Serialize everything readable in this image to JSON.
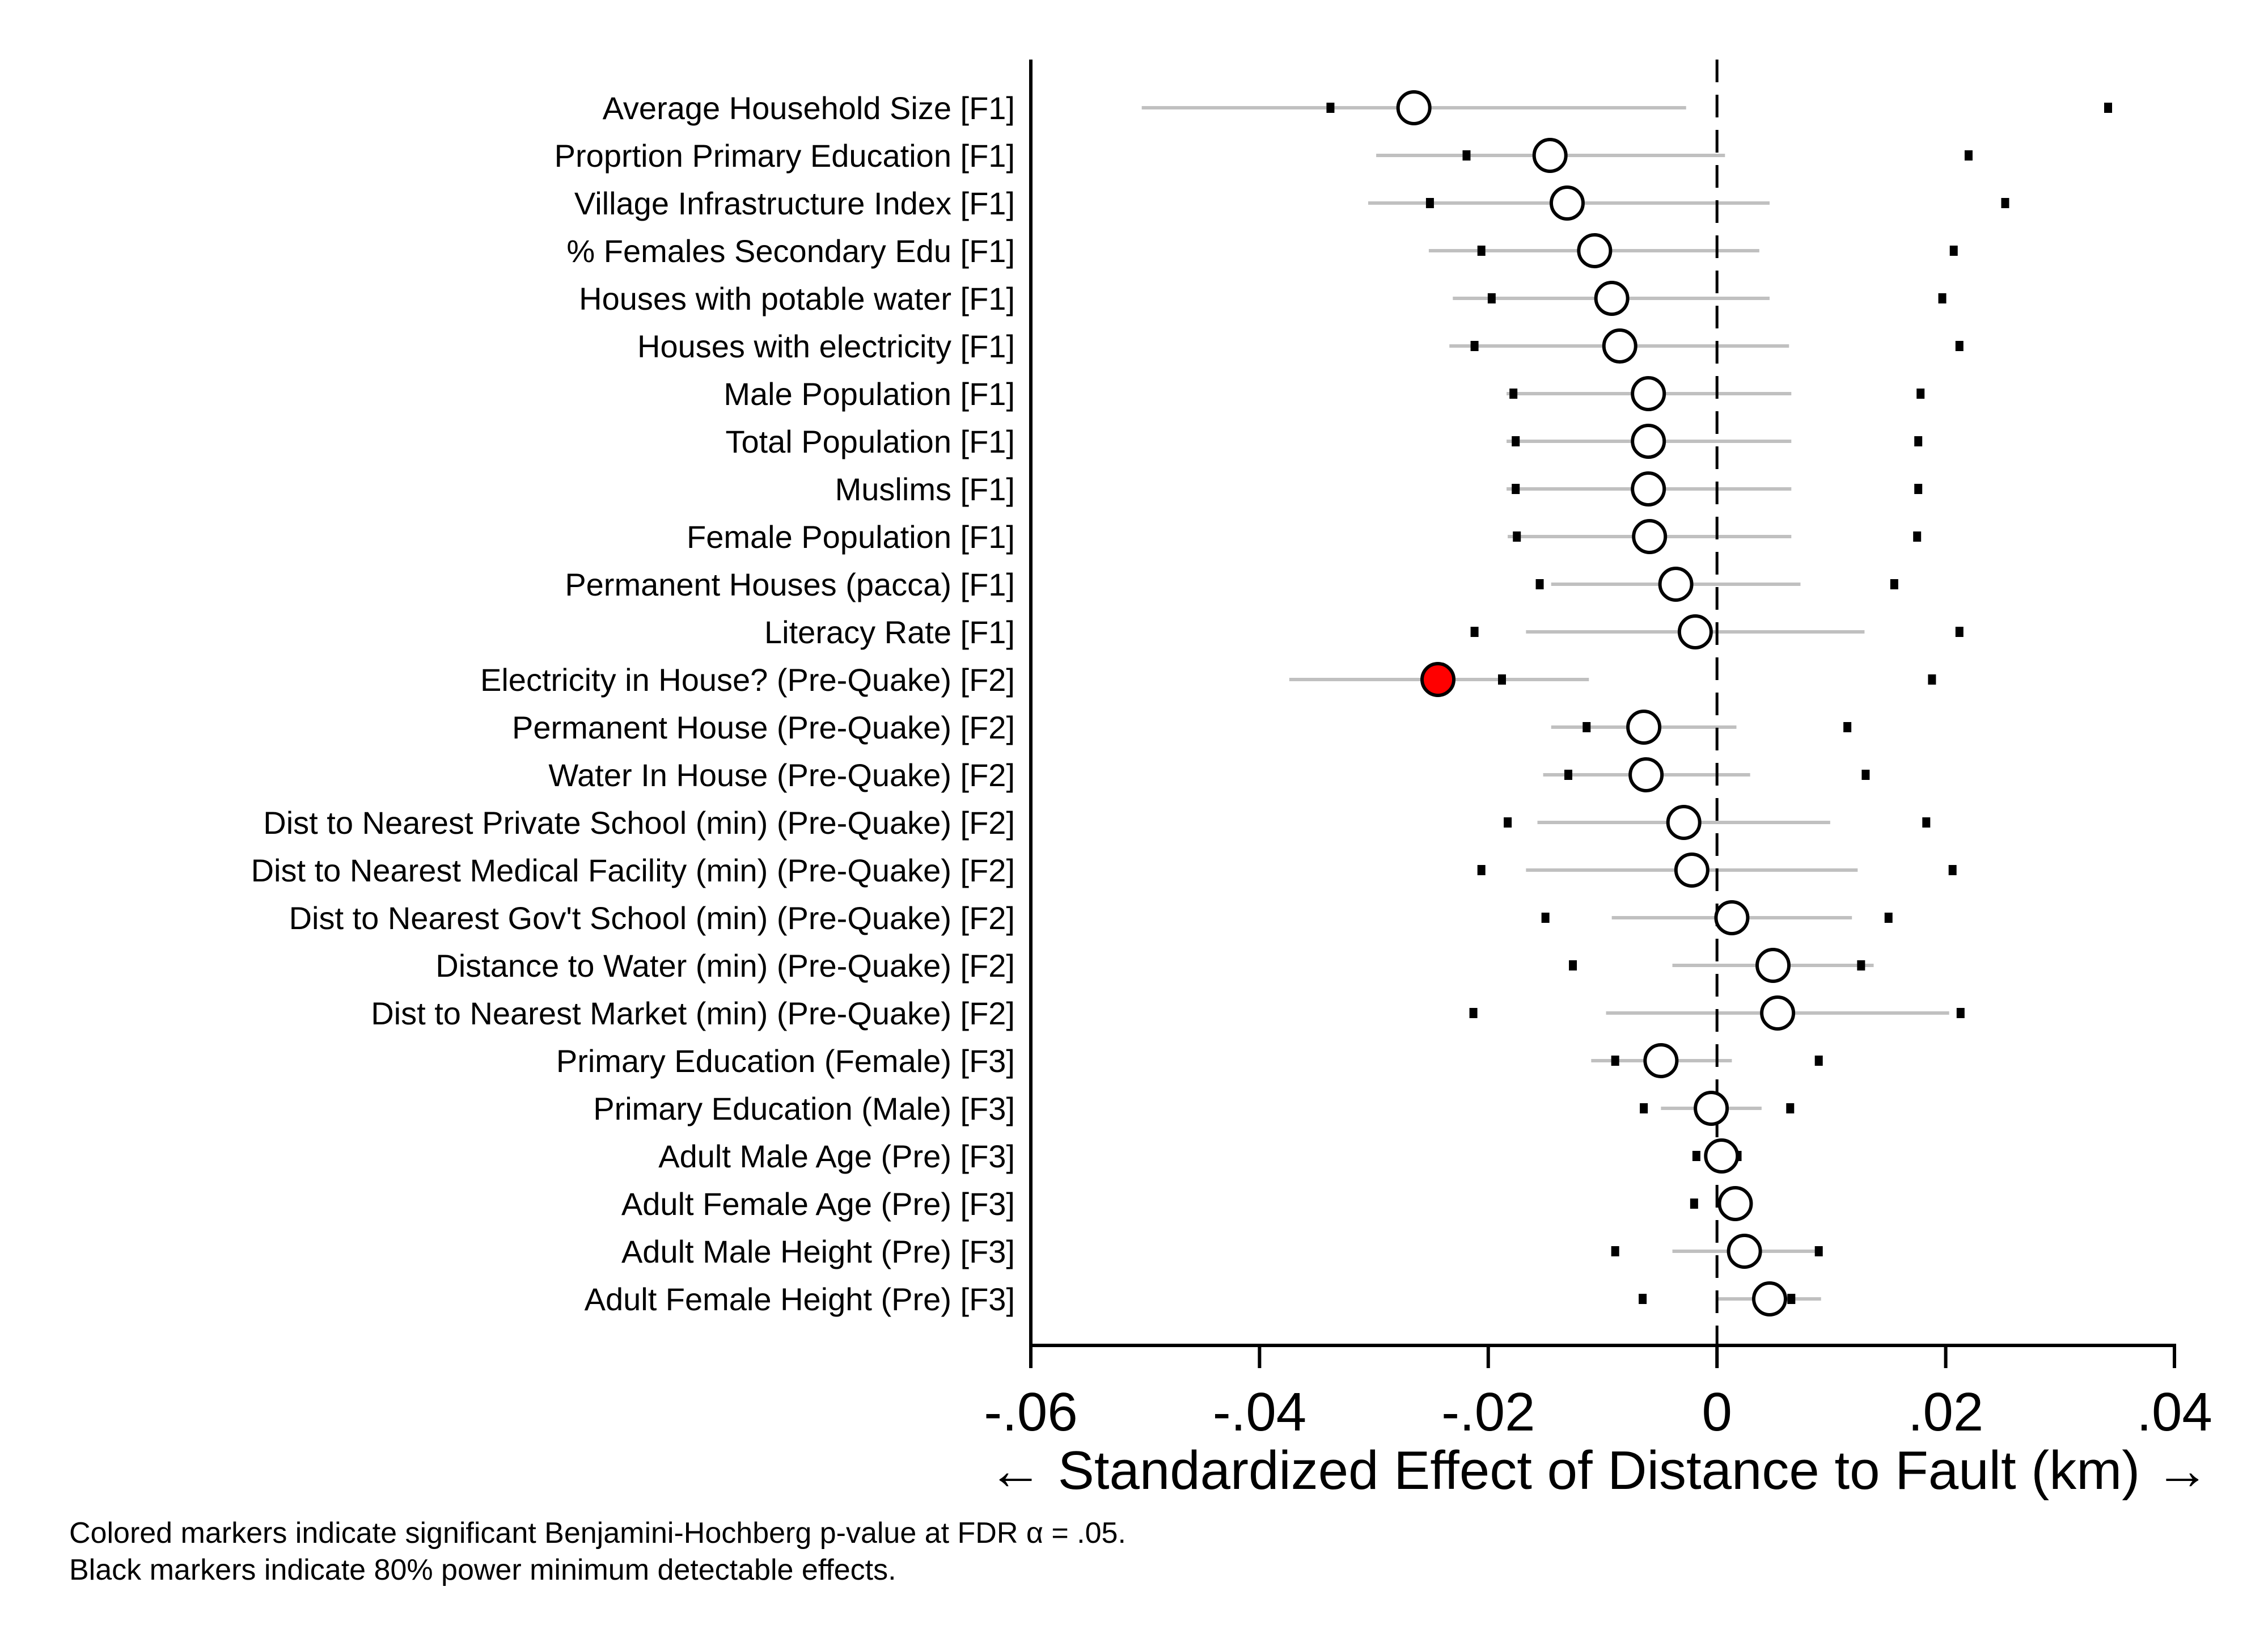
{
  "chart_data": {
    "type": "scatter",
    "subtype": "coefficient-plot",
    "xlabel": "← Standardized Effect of Distance to Fault (km) →",
    "xlim": [
      -0.06,
      0.04
    ],
    "x_ticks": [
      -0.06,
      -0.04,
      -0.02,
      0,
      0.02,
      0.04
    ],
    "x_tick_labels": [
      "-.06",
      "-.04",
      "-.02",
      "0",
      ".02",
      ".04"
    ],
    "reference_line": 0,
    "grid": false,
    "colors": {
      "ci": "#c0c0c0",
      "marker_fill": "#ffffff",
      "marker_significant": "#ff0000",
      "mde": "#000000"
    },
    "rows": [
      {
        "label": "Average Household Size [F1]",
        "estimate": -0.0265,
        "ci": [
          -0.0503,
          -0.0027
        ],
        "mde": [
          -0.0338,
          0.0342
        ],
        "significant": false
      },
      {
        "label": "Proprtion Primary Education [F1]",
        "estimate": -0.0146,
        "ci": [
          -0.0298,
          0.0007
        ],
        "mde": [
          -0.0219,
          0.022
        ],
        "significant": false
      },
      {
        "label": "Village Infrastructure Index [F1]",
        "estimate": -0.0131,
        "ci": [
          -0.0305,
          0.0046
        ],
        "mde": [
          -0.0251,
          0.0252
        ],
        "significant": false
      },
      {
        "label": "% Females Secondary Edu [F1]",
        "estimate": -0.0107,
        "ci": [
          -0.0252,
          0.0037
        ],
        "mde": [
          -0.0206,
          0.0207
        ],
        "significant": false
      },
      {
        "label": "Houses with potable water [F1]",
        "estimate": -0.0092,
        "ci": [
          -0.0231,
          0.0046
        ],
        "mde": [
          -0.0197,
          0.0197
        ],
        "significant": false
      },
      {
        "label": "Houses with electricity [F1]",
        "estimate": -0.0085,
        "ci": [
          -0.0234,
          0.0063
        ],
        "mde": [
          -0.0212,
          0.0212
        ],
        "significant": false
      },
      {
        "label": "Male Population [F1]",
        "estimate": -0.006,
        "ci": [
          -0.0184,
          0.0065
        ],
        "mde": [
          -0.0178,
          0.0178
        ],
        "significant": false
      },
      {
        "label": "Total Population [F1]",
        "estimate": -0.006,
        "ci": [
          -0.0184,
          0.0065
        ],
        "mde": [
          -0.0176,
          0.0176
        ],
        "significant": false
      },
      {
        "label": "Muslims [F1]",
        "estimate": -0.006,
        "ci": [
          -0.0184,
          0.0065
        ],
        "mde": [
          -0.0176,
          0.0176
        ],
        "significant": false
      },
      {
        "label": "Female Population [F1]",
        "estimate": -0.0059,
        "ci": [
          -0.0183,
          0.0065
        ],
        "mde": [
          -0.0175,
          0.0175
        ],
        "significant": false
      },
      {
        "label": "Permanent Houses (pacca) [F1]",
        "estimate": -0.0036,
        "ci": [
          -0.0145,
          0.0073
        ],
        "mde": [
          -0.0155,
          0.0155
        ],
        "significant": false
      },
      {
        "label": "Literacy Rate [F1]",
        "estimate": -0.0019,
        "ci": [
          -0.0167,
          0.0129
        ],
        "mde": [
          -0.0212,
          0.0212
        ],
        "significant": false
      },
      {
        "label": "Electricity in House? (Pre-Quake) [F2]",
        "estimate": -0.0244,
        "ci": [
          -0.0374,
          -0.0112
        ],
        "mde": [
          -0.0188,
          0.0188
        ],
        "significant": true
      },
      {
        "label": "Permanent House (Pre-Quake) [F2]",
        "estimate": -0.0064,
        "ci": [
          -0.0145,
          0.0017
        ],
        "mde": [
          -0.0114,
          0.0114
        ],
        "significant": false
      },
      {
        "label": "Water In House (Pre-Quake) [F2]",
        "estimate": -0.0062,
        "ci": [
          -0.0152,
          0.0029
        ],
        "mde": [
          -0.013,
          0.013
        ],
        "significant": false
      },
      {
        "label": "Dist to Nearest Private School (min) (Pre-Quake) [F2]",
        "estimate": -0.0029,
        "ci": [
          -0.0157,
          0.0099
        ],
        "mde": [
          -0.0183,
          0.0183
        ],
        "significant": false
      },
      {
        "label": "Dist to Nearest Medical Facility (min) (Pre-Quake) [F2]",
        "estimate": -0.0022,
        "ci": [
          -0.0167,
          0.0123
        ],
        "mde": [
          -0.0206,
          0.0206
        ],
        "significant": false
      },
      {
        "label": "Dist to Nearest Gov't School (min) (Pre-Quake) [F2]",
        "estimate": 0.0013,
        "ci": [
          -0.0092,
          0.0118
        ],
        "mde": [
          -0.015,
          0.015
        ],
        "significant": false
      },
      {
        "label": "Distance to Water (min) (Pre-Quake) [F2]",
        "estimate": 0.0049,
        "ci": [
          -0.0039,
          0.0137
        ],
        "mde": [
          -0.0126,
          0.0126
        ],
        "significant": false
      },
      {
        "label": "Dist to Nearest Market (min) (Pre-Quake) [F2]",
        "estimate": 0.0053,
        "ci": [
          -0.0097,
          0.0203
        ],
        "mde": [
          -0.0213,
          0.0213
        ],
        "significant": false
      },
      {
        "label": "Primary Education (Female) [F3]",
        "estimate": -0.0049,
        "ci": [
          -0.011,
          0.0013
        ],
        "mde": [
          -0.0089,
          0.0089
        ],
        "significant": false
      },
      {
        "label": "Primary Education (Male) [F3]",
        "estimate": -0.0005,
        "ci": [
          -0.0049,
          0.0039
        ],
        "mde": [
          -0.0064,
          0.0064
        ],
        "significant": false
      },
      {
        "label": "Adult Male Age (Pre) [F3]",
        "estimate": 0.0004,
        "ci": [
          -0.0009,
          0.0017
        ],
        "mde": [
          -0.0018,
          0.0018
        ],
        "significant": false
      },
      {
        "label": "Adult Female Age (Pre) [F3]",
        "estimate": 0.0016,
        "ci": [
          0.0002,
          0.003
        ],
        "mde": [
          -0.002,
          0.002
        ],
        "significant": false
      },
      {
        "label": "Adult Male Height (Pre) [F3]",
        "estimate": 0.0024,
        "ci": [
          -0.0039,
          0.0087
        ],
        "mde": [
          -0.0089,
          0.0089
        ],
        "significant": false
      },
      {
        "label": "Adult Female Height (Pre) [F3]",
        "estimate": 0.0046,
        "ci": [
          0.0001,
          0.0091
        ],
        "mde": [
          -0.0065,
          0.0065
        ],
        "significant": false
      }
    ]
  },
  "notes": [
    "Colored markers indicate significant Benjamini-Hochberg p-value at FDR α = .05.",
    "Black markers indicate 80% power minimum detectable effects."
  ]
}
